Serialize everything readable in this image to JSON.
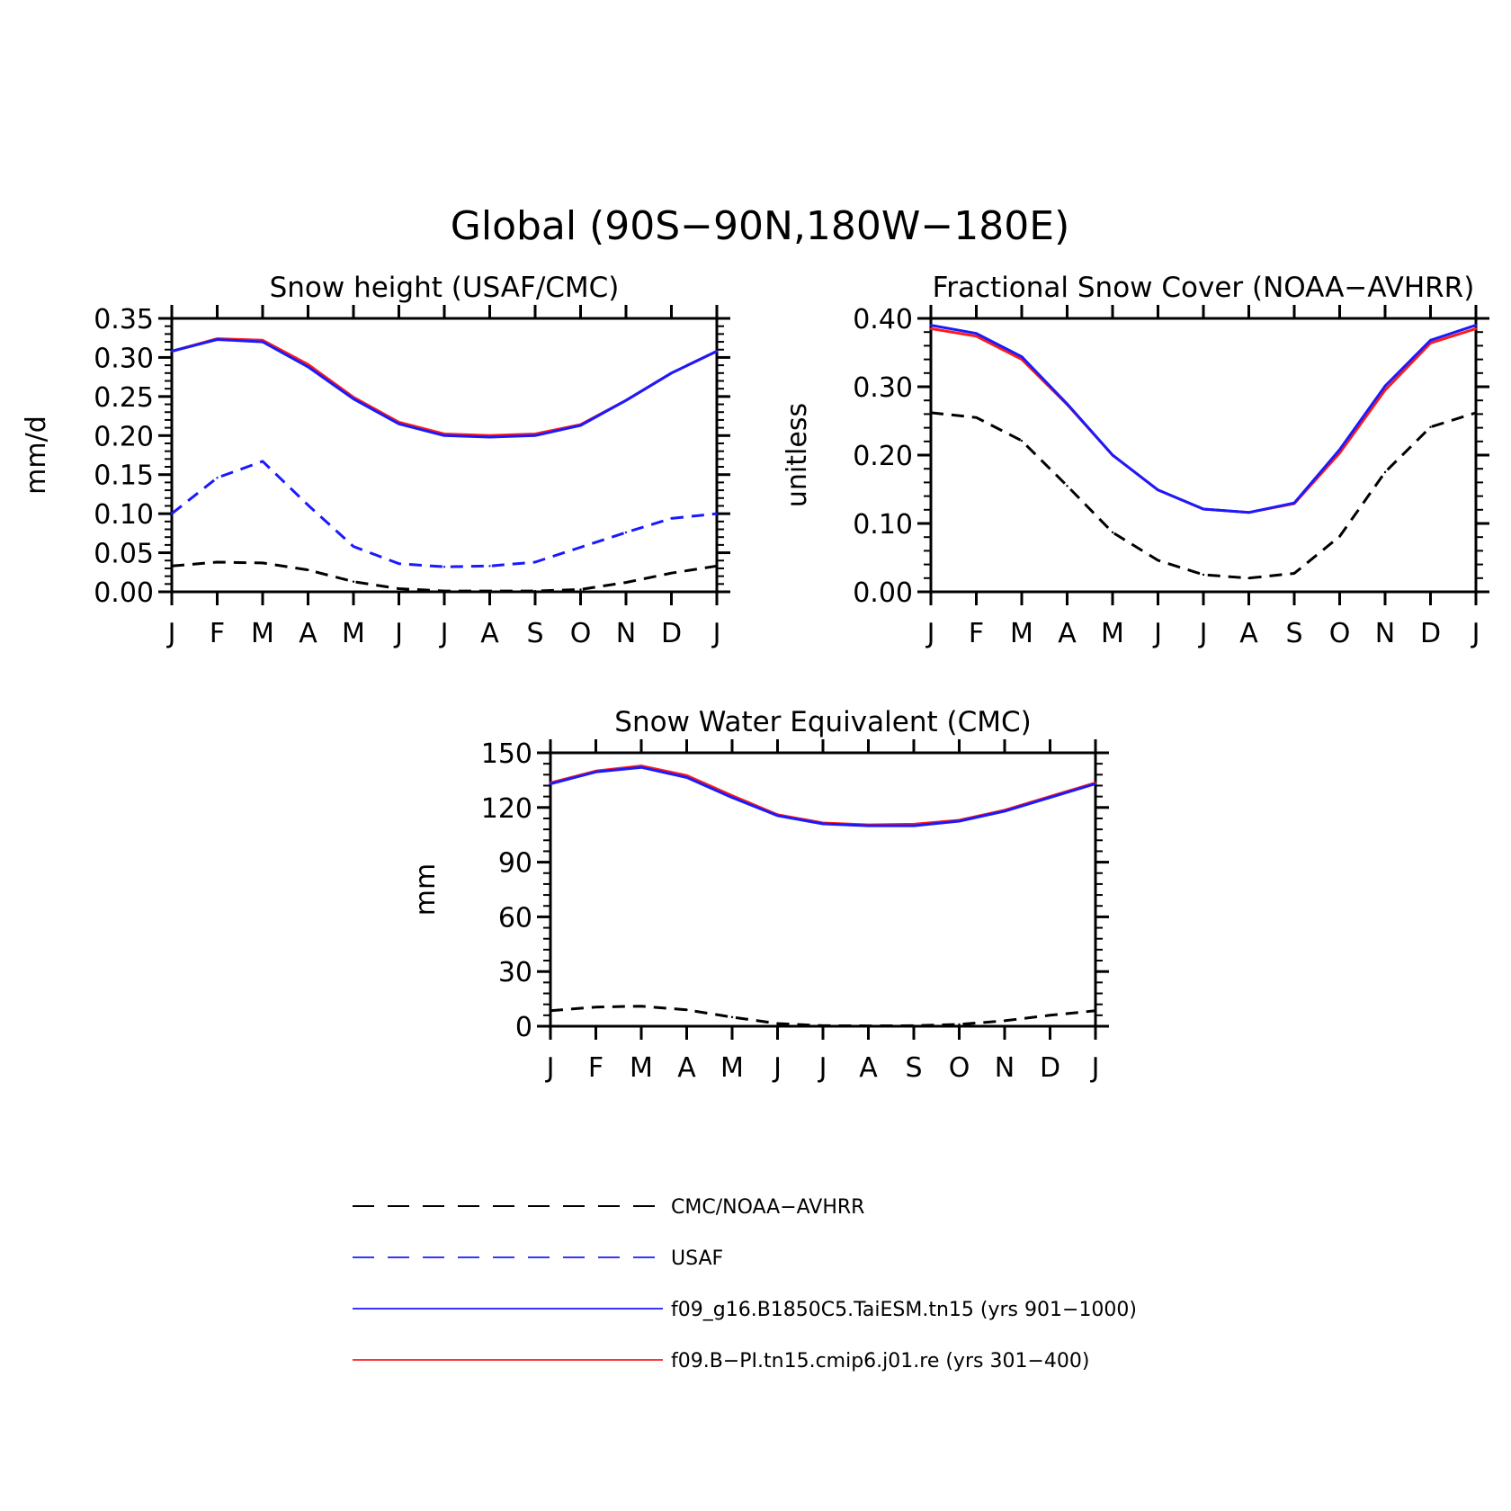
{
  "figure": {
    "title": "Global (90S−90N,180W−180E)"
  },
  "colors": {
    "obs_black": "#000000",
    "usaf_blue": "#1a1aff",
    "model_blue": "#1a1aff",
    "model_red": "#ff1a1a"
  },
  "legend": {
    "items": [
      {
        "label": "CMC/NOAA−AVHRR",
        "color": "#000000",
        "dashed": true
      },
      {
        "label": "USAF",
        "color": "#1a1aff",
        "dashed": true
      },
      {
        "label": "f09_g16.B1850C5.TaiESM.tn15 (yrs 901−1000)",
        "color": "#1a1aff",
        "dashed": false
      },
      {
        "label": "f09.B−PI.tn15.cmip6.j01.re (yrs 301−400)",
        "color": "#ff1a1a",
        "dashed": false
      }
    ]
  },
  "chart_data": [
    {
      "type": "line",
      "title": "Snow height (USAF/CMC)",
      "ylabel": "mm/d",
      "categories": [
        "J",
        "F",
        "M",
        "A",
        "M",
        "J",
        "J",
        "A",
        "S",
        "O",
        "N",
        "D",
        "J"
      ],
      "ylim": [
        0,
        0.35
      ],
      "yticks": [
        "0.00",
        "0.05",
        "0.10",
        "0.15",
        "0.20",
        "0.25",
        "0.30",
        "0.35"
      ],
      "series": [
        {
          "name": "f09.B−PI.tn15.cmip6.j01.re (yrs 301−400)",
          "color": "#ff1a1a",
          "dashed": false,
          "values": [
            0.308,
            0.324,
            0.322,
            0.291,
            0.249,
            0.217,
            0.202,
            0.2,
            0.202,
            0.214,
            0.245,
            0.28,
            0.308
          ]
        },
        {
          "name": "f09_g16.B1850C5.TaiESM.tn15 (yrs 901−1000)",
          "color": "#1a1aff",
          "dashed": false,
          "values": [
            0.308,
            0.323,
            0.32,
            0.288,
            0.247,
            0.215,
            0.2,
            0.198,
            0.2,
            0.213,
            0.245,
            0.28,
            0.308
          ]
        },
        {
          "name": "USAF",
          "color": "#1a1aff",
          "dashed": true,
          "values": [
            0.1,
            0.146,
            0.167,
            0.111,
            0.058,
            0.036,
            0.032,
            0.033,
            0.038,
            0.057,
            0.076,
            0.094,
            0.1
          ]
        },
        {
          "name": "CMC/NOAA−AVHRR",
          "color": "#000000",
          "dashed": true,
          "values": [
            0.033,
            0.038,
            0.037,
            0.028,
            0.013,
            0.004,
            0.001,
            0.001,
            0.001,
            0.003,
            0.012,
            0.024,
            0.033
          ]
        }
      ]
    },
    {
      "type": "line",
      "title": "Fractional Snow Cover (NOAA−AVHRR)",
      "ylabel": "unitless",
      "categories": [
        "J",
        "F",
        "M",
        "A",
        "M",
        "J",
        "J",
        "A",
        "S",
        "O",
        "N",
        "D",
        "J"
      ],
      "ylim": [
        0,
        0.4
      ],
      "yticks": [
        "0.00",
        "0.10",
        "0.20",
        "0.30",
        "0.40"
      ],
      "series": [
        {
          "name": "f09.B−PI.tn15.cmip6.j01.re (yrs 301−400)",
          "color": "#ff1a1a",
          "dashed": false,
          "values": [
            0.385,
            0.374,
            0.34,
            0.274,
            0.2,
            0.149,
            0.121,
            0.116,
            0.129,
            0.203,
            0.295,
            0.364,
            0.385
          ]
        },
        {
          "name": "f09_g16.B1850C5.TaiESM.tn15 (yrs 901−1000)",
          "color": "#1a1aff",
          "dashed": false,
          "values": [
            0.39,
            0.378,
            0.344,
            0.275,
            0.2,
            0.149,
            0.121,
            0.116,
            0.13,
            0.208,
            0.301,
            0.368,
            0.39
          ]
        },
        {
          "name": "CMC/NOAA−AVHRR",
          "color": "#000000",
          "dashed": true,
          "values": [
            0.262,
            0.255,
            0.221,
            0.155,
            0.087,
            0.046,
            0.025,
            0.02,
            0.027,
            0.081,
            0.175,
            0.241,
            0.262
          ]
        }
      ]
    },
    {
      "type": "line",
      "title": "Snow Water Equivalent (CMC)",
      "ylabel": "mm",
      "categories": [
        "J",
        "F",
        "M",
        "A",
        "M",
        "J",
        "J",
        "A",
        "S",
        "O",
        "N",
        "D",
        "J"
      ],
      "ylim": [
        0,
        150
      ],
      "yticks": [
        "0",
        "30",
        "60",
        "90",
        "120",
        "150"
      ],
      "series": [
        {
          "name": "f09.B−PI.tn15.cmip6.j01.re (yrs 301−400)",
          "color": "#ff1a1a",
          "dashed": false,
          "values": [
            133.5,
            140.0,
            142.8,
            137.5,
            126.5,
            116.0,
            111.5,
            110.5,
            110.8,
            113.0,
            118.5,
            126.0,
            133.5
          ]
        },
        {
          "name": "f09_g16.B1850C5.TaiESM.tn15 (yrs 901−1000)",
          "color": "#1a1aff",
          "dashed": false,
          "values": [
            133.0,
            139.5,
            142.0,
            136.5,
            125.5,
            115.5,
            111.0,
            110.0,
            110.0,
            112.5,
            118.0,
            125.5,
            133.0
          ]
        },
        {
          "name": "CMC/NOAA−AVHRR",
          "color": "#000000",
          "dashed": true,
          "values": [
            8.5,
            10.5,
            11.0,
            9.0,
            5.0,
            1.5,
            0.3,
            0.2,
            0.3,
            1.0,
            3.0,
            6.0,
            8.5
          ]
        }
      ]
    }
  ]
}
